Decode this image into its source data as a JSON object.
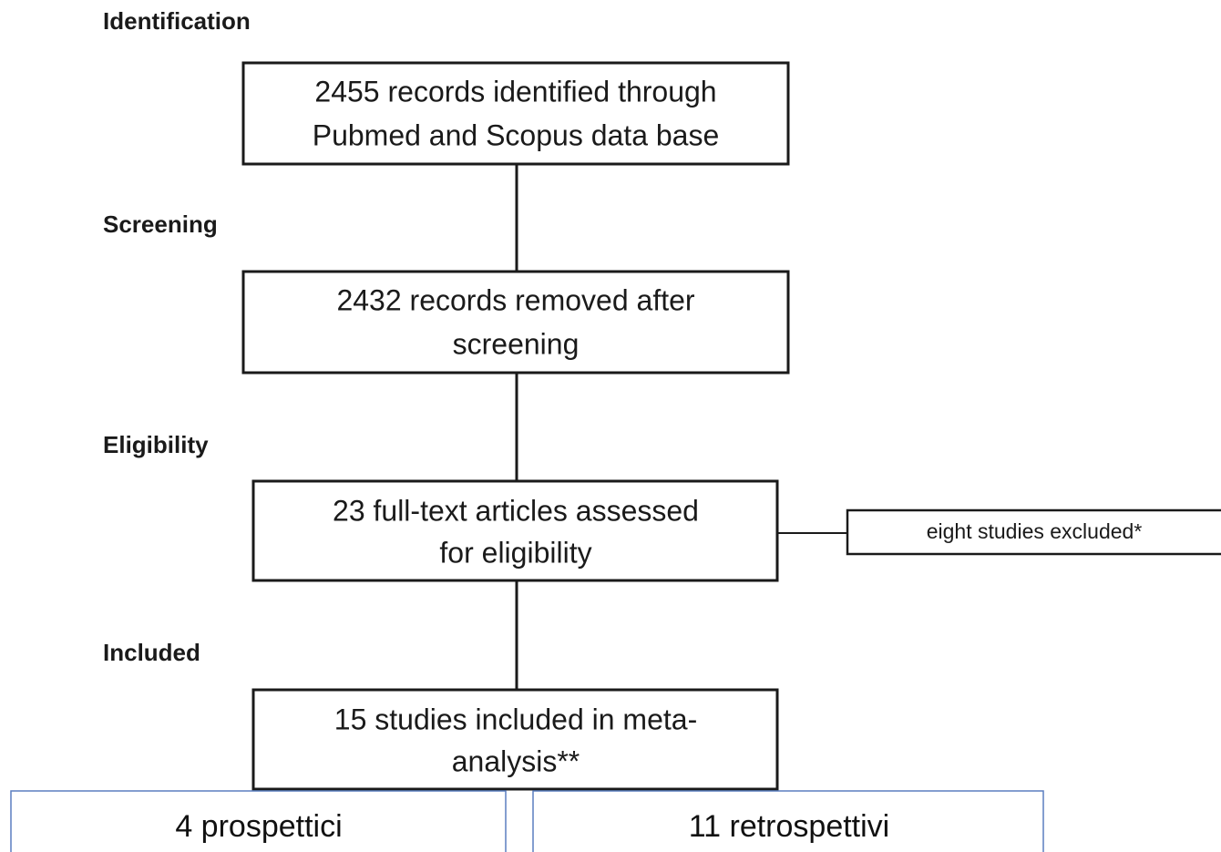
{
  "stages": [
    "Identification",
    "Screening",
    "Eligibility",
    "Included"
  ],
  "nodes": [
    {
      "lines": [
        "2455 records identified through",
        "Pubmed and Scopus data base"
      ]
    },
    {
      "lines": [
        "2432 records removed after",
        "screening"
      ]
    },
    {
      "lines": [
        "23 full-text articles assessed",
        "for eligibility"
      ]
    },
    {
      "lines": [
        "15 studies included in meta-",
        "analysis**"
      ]
    }
  ],
  "side": "eight studies excluded*",
  "bottom": [
    "4 prospettici",
    "11 retrospettivi"
  ]
}
